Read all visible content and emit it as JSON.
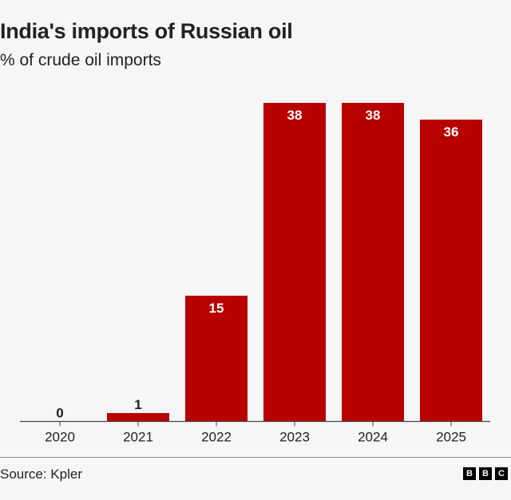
{
  "chart_data": {
    "type": "bar",
    "title": "India's imports of Russian oil",
    "subtitle": "% of crude oil imports",
    "categories": [
      "2020",
      "2021",
      "2022",
      "2023",
      "2024",
      "2025"
    ],
    "values": [
      0,
      1,
      15,
      38,
      38,
      36
    ],
    "xlabel": "",
    "ylabel": "% of crude oil imports",
    "ylim": [
      0,
      38
    ],
    "grid": false,
    "bar_color": "#b80000"
  },
  "footer": {
    "source": "Source: Kpler",
    "logo_letters": [
      "B",
      "B",
      "C"
    ]
  }
}
